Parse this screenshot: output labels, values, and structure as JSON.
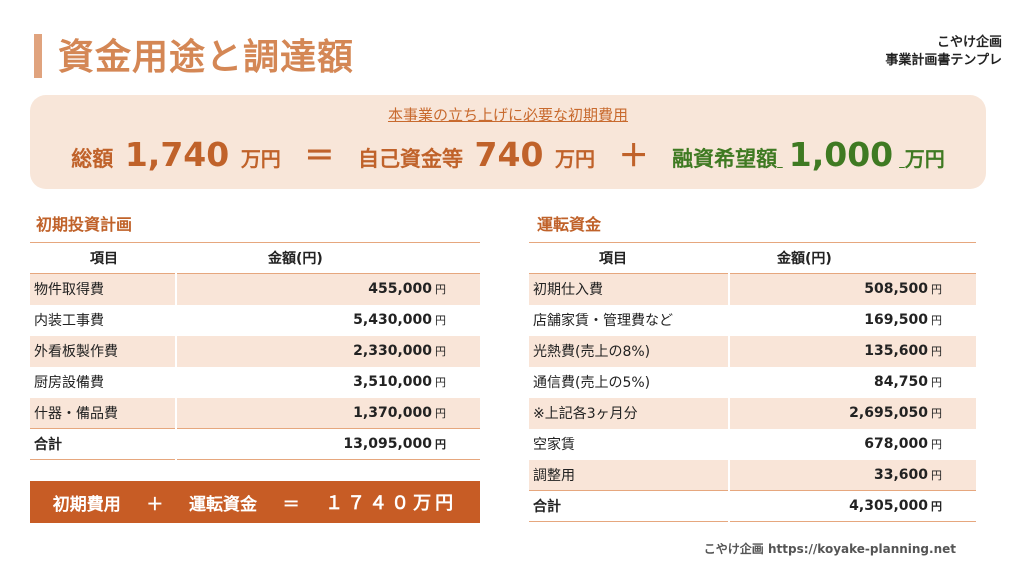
{
  "title": "資金用途と調達額",
  "brand": {
    "line1": "こやけ企画",
    "line2": "事業計画書テンプレ"
  },
  "summary": {
    "subtitle": "本事業の立ち上げに必要な初期費用",
    "total_label": "総額",
    "total_value": "1,740",
    "unit": "万円",
    "equals": "＝",
    "own_label": "自己資金等",
    "own_value": "740",
    "plus": "＋",
    "loan_label": "融資希望額",
    "loan_value": "1,000"
  },
  "initial": {
    "title": "初期投資計画",
    "headers": [
      "項目",
      "金額(円)"
    ],
    "rows": [
      {
        "item": "物件取得費",
        "amount": "455,000",
        "unit": "円"
      },
      {
        "item": "内装工事費",
        "amount": "5,430,000",
        "unit": "円"
      },
      {
        "item": "外看板製作費",
        "amount": "2,330,000",
        "unit": "円"
      },
      {
        "item": "厨房設備費",
        "amount": "3,510,000",
        "unit": "円"
      },
      {
        "item": "什器・備品費",
        "amount": "1,370,000",
        "unit": "円"
      }
    ],
    "total": {
      "item": "合計",
      "amount": "13,095,000",
      "unit": "円"
    }
  },
  "working": {
    "title": "運転資金",
    "headers": [
      "項目",
      "金額(円)"
    ],
    "rows": [
      {
        "item": "初期仕入費",
        "amount": "508,500",
        "unit": "円"
      },
      {
        "item": "店舗家賃・管理費など",
        "amount": "169,500",
        "unit": "円"
      },
      {
        "item": "光熱費(売上の8%)",
        "amount": "135,600",
        "unit": "円"
      },
      {
        "item": "通信費(売上の5%)",
        "amount": "84,750",
        "unit": "円"
      },
      {
        "item": "※上記各3ヶ月分",
        "amount": "2,695,050",
        "unit": "円"
      },
      {
        "item": "空家賃",
        "amount": "678,000",
        "unit": "円"
      },
      {
        "item": "調整用",
        "amount": "33,600",
        "unit": "円"
      }
    ],
    "total": {
      "item": "合計",
      "amount": "4,305,000",
      "unit": "円"
    }
  },
  "formula": {
    "a": "初期費用",
    "plus": "＋",
    "b": "運転資金",
    "equals": "＝",
    "result": "１７４０万円"
  },
  "footer": "こやけ企画 https://koyake-planning.net"
}
